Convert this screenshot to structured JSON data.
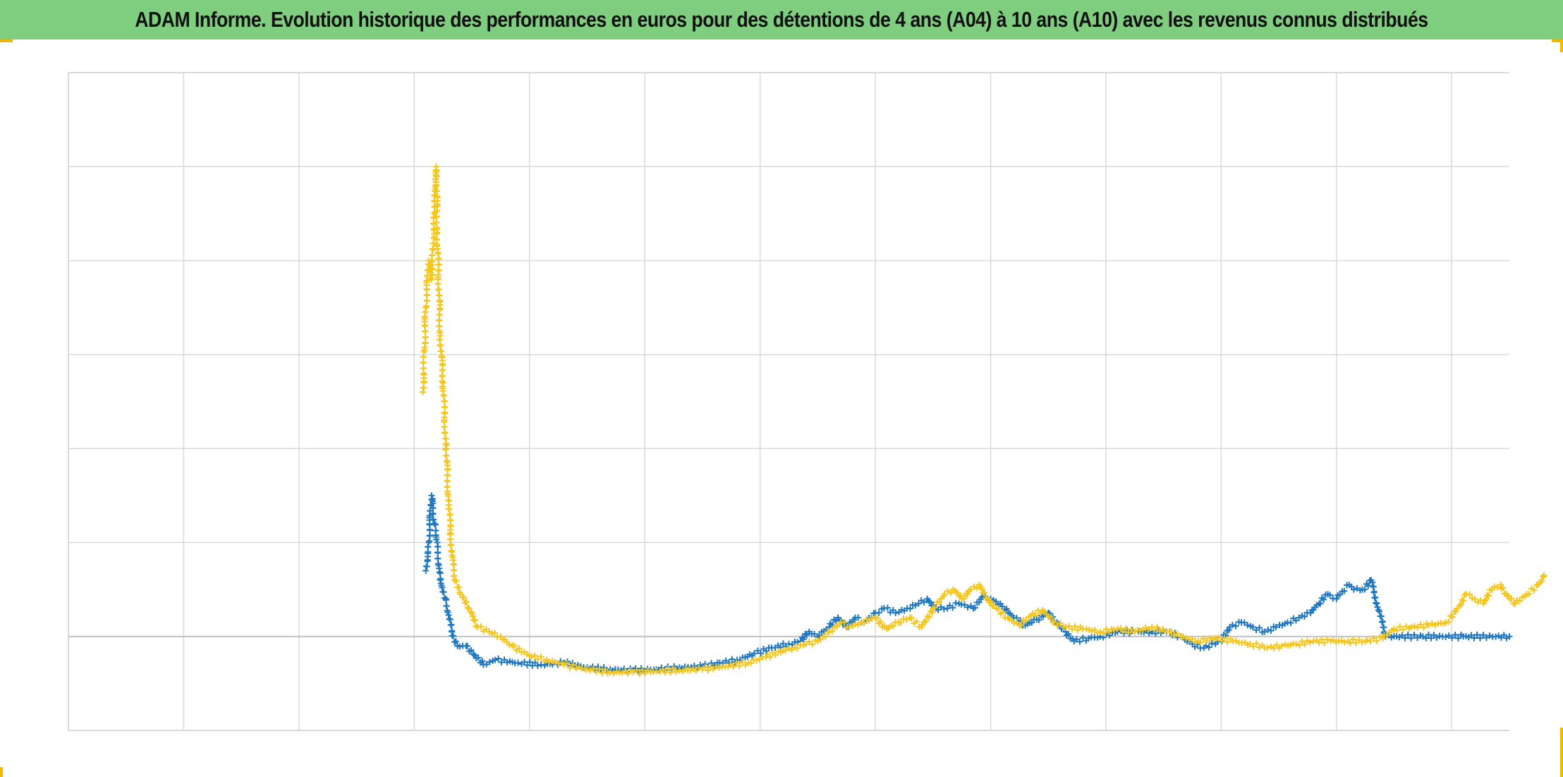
{
  "title": "ADAM Informe. Evolution historique des performances en euros pour des détentions de 4 ans (A04) à 10 ans (A10) avec les revenus connus distribués",
  "colors": {
    "title_background": "#7fcd7f",
    "frame_accent": "#f2b700",
    "grid": "#d9d9d9",
    "zero_line": "#bfbfbf",
    "series_blue": "#1f77c0",
    "series_gold": "#f5c518"
  },
  "chart_data": {
    "type": "scatter",
    "title": "ADAM Informe. Evolution historique des performances en euros pour des détentions de 4 ans (A04) à 10 ans (A10) avec les revenus connus distribués",
    "xlabel": "",
    "ylabel": "",
    "tick_labels_shown": false,
    "grid": true,
    "legend": "none",
    "marker": "plus",
    "xlim": [
      0,
      25
    ],
    "ylim": [
      -1,
      6
    ],
    "x_gridlines": 12.5,
    "y_gridlines": 7,
    "series": [
      {
        "color": "#1f77c0",
        "points": [
          [
            6.2,
            0.7
          ],
          [
            6.25,
            1.0
          ],
          [
            6.3,
            1.5
          ],
          [
            6.35,
            1.2
          ],
          [
            6.4,
            1.0
          ],
          [
            6.45,
            0.6
          ],
          [
            6.55,
            0.4
          ],
          [
            6.65,
            0.05
          ],
          [
            6.75,
            -0.1
          ],
          [
            6.9,
            -0.1
          ],
          [
            7.05,
            -0.2
          ],
          [
            7.2,
            -0.3
          ],
          [
            7.4,
            -0.25
          ],
          [
            7.8,
            -0.28
          ],
          [
            8.2,
            -0.3
          ],
          [
            8.6,
            -0.28
          ],
          [
            9.0,
            -0.33
          ],
          [
            9.4,
            -0.35
          ],
          [
            9.8,
            -0.36
          ],
          [
            10.2,
            -0.35
          ],
          [
            10.6,
            -0.33
          ],
          [
            11.0,
            -0.32
          ],
          [
            11.3,
            -0.28
          ],
          [
            11.6,
            -0.25
          ],
          [
            11.9,
            -0.18
          ],
          [
            12.2,
            -0.12
          ],
          [
            12.5,
            -0.08
          ],
          [
            12.7,
            -0.05
          ],
          [
            12.85,
            0.05
          ],
          [
            13.0,
            0.0
          ],
          [
            13.2,
            0.1
          ],
          [
            13.35,
            0.2
          ],
          [
            13.5,
            0.1
          ],
          [
            13.65,
            0.2
          ],
          [
            13.8,
            0.15
          ],
          [
            14.0,
            0.25
          ],
          [
            14.15,
            0.3
          ],
          [
            14.35,
            0.25
          ],
          [
            14.55,
            0.3
          ],
          [
            14.75,
            0.35
          ],
          [
            14.9,
            0.4
          ],
          [
            15.05,
            0.3
          ],
          [
            15.25,
            0.3
          ],
          [
            15.45,
            0.35
          ],
          [
            15.7,
            0.3
          ],
          [
            15.85,
            0.42
          ],
          [
            16.0,
            0.4
          ],
          [
            16.2,
            0.32
          ],
          [
            16.4,
            0.2
          ],
          [
            16.6,
            0.12
          ],
          [
            16.8,
            0.18
          ],
          [
            17.0,
            0.25
          ],
          [
            17.15,
            0.15
          ],
          [
            17.3,
            0.05
          ],
          [
            17.45,
            -0.05
          ],
          [
            17.7,
            -0.02
          ],
          [
            17.9,
            0.0
          ],
          [
            18.2,
            0.05
          ],
          [
            18.5,
            0.05
          ],
          [
            18.8,
            0.05
          ],
          [
            19.05,
            0.05
          ],
          [
            19.3,
            0.0
          ],
          [
            19.5,
            -0.08
          ],
          [
            19.7,
            -0.12
          ],
          [
            19.9,
            -0.08
          ],
          [
            20.0,
            -0.05
          ],
          [
            20.15,
            0.1
          ],
          [
            20.35,
            0.15
          ],
          [
            20.55,
            0.1
          ],
          [
            20.75,
            0.05
          ],
          [
            20.95,
            0.1
          ],
          [
            21.15,
            0.15
          ],
          [
            21.35,
            0.2
          ],
          [
            21.55,
            0.25
          ],
          [
            21.7,
            0.35
          ],
          [
            21.85,
            0.45
          ],
          [
            22.0,
            0.4
          ],
          [
            22.1,
            0.48
          ],
          [
            22.22,
            0.55
          ],
          [
            22.3,
            0.5
          ],
          [
            22.45,
            0.5
          ],
          [
            22.6,
            0.6
          ],
          [
            22.85,
            0.0
          ],
          [
            23.5,
            0.0
          ],
          [
            24.2,
            0.0
          ],
          [
            25.0,
            0.0
          ]
        ]
      },
      {
        "color": "#f5c518",
        "points": [
          [
            6.15,
            2.6
          ],
          [
            6.2,
            3.5
          ],
          [
            6.25,
            4.0
          ],
          [
            6.3,
            3.8
          ],
          [
            6.35,
            4.5
          ],
          [
            6.38,
            5.0
          ],
          [
            6.4,
            4.3
          ],
          [
            6.45,
            3.2
          ],
          [
            6.5,
            2.7
          ],
          [
            6.55,
            2.0
          ],
          [
            6.6,
            1.4
          ],
          [
            6.65,
            0.9
          ],
          [
            6.7,
            0.6
          ],
          [
            6.8,
            0.45
          ],
          [
            6.95,
            0.3
          ],
          [
            7.1,
            0.1
          ],
          [
            7.3,
            0.05
          ],
          [
            7.5,
            0.0
          ],
          [
            7.7,
            -0.1
          ],
          [
            8.0,
            -0.2
          ],
          [
            8.3,
            -0.25
          ],
          [
            8.6,
            -0.3
          ],
          [
            9.0,
            -0.35
          ],
          [
            9.4,
            -0.38
          ],
          [
            9.8,
            -0.38
          ],
          [
            10.2,
            -0.37
          ],
          [
            10.6,
            -0.36
          ],
          [
            11.0,
            -0.35
          ],
          [
            11.4,
            -0.32
          ],
          [
            11.8,
            -0.28
          ],
          [
            12.1,
            -0.22
          ],
          [
            12.4,
            -0.15
          ],
          [
            12.6,
            -0.12
          ],
          [
            12.8,
            -0.08
          ],
          [
            13.0,
            -0.05
          ],
          [
            13.2,
            0.05
          ],
          [
            13.4,
            0.15
          ],
          [
            13.55,
            0.1
          ],
          [
            13.75,
            0.15
          ],
          [
            14.0,
            0.2
          ],
          [
            14.2,
            0.08
          ],
          [
            14.4,
            0.15
          ],
          [
            14.6,
            0.2
          ],
          [
            14.8,
            0.1
          ],
          [
            15.0,
            0.3
          ],
          [
            15.2,
            0.45
          ],
          [
            15.35,
            0.5
          ],
          [
            15.5,
            0.4
          ],
          [
            15.65,
            0.5
          ],
          [
            15.8,
            0.55
          ],
          [
            15.95,
            0.4
          ],
          [
            16.1,
            0.3
          ],
          [
            16.3,
            0.2
          ],
          [
            16.5,
            0.12
          ],
          [
            16.7,
            0.22
          ],
          [
            16.9,
            0.28
          ],
          [
            17.1,
            0.15
          ],
          [
            17.3,
            0.1
          ],
          [
            17.6,
            0.08
          ],
          [
            17.9,
            0.05
          ],
          [
            18.2,
            0.08
          ],
          [
            18.5,
            0.05
          ],
          [
            18.8,
            0.1
          ],
          [
            19.1,
            0.05
          ],
          [
            19.3,
            0.0
          ],
          [
            19.6,
            -0.05
          ],
          [
            19.9,
            -0.02
          ],
          [
            20.2,
            -0.05
          ],
          [
            20.5,
            -0.08
          ],
          [
            20.8,
            -0.12
          ],
          [
            21.05,
            -0.1
          ],
          [
            21.3,
            -0.08
          ],
          [
            21.6,
            -0.05
          ],
          [
            21.9,
            -0.05
          ],
          [
            22.2,
            -0.05
          ],
          [
            22.5,
            -0.05
          ],
          [
            22.8,
            -0.02
          ],
          [
            23.0,
            0.08
          ],
          [
            23.3,
            0.1
          ],
          [
            23.6,
            0.12
          ],
          [
            23.9,
            0.15
          ],
          [
            24.1,
            0.3
          ],
          [
            24.25,
            0.45
          ],
          [
            24.4,
            0.4
          ],
          [
            24.55,
            0.35
          ],
          [
            24.7,
            0.5
          ],
          [
            24.85,
            0.55
          ],
          [
            24.95,
            0.45
          ],
          [
            25.1,
            0.35
          ],
          [
            25.3,
            0.45
          ],
          [
            25.5,
            0.55
          ],
          [
            25.6,
            0.65
          ]
        ]
      }
    ]
  }
}
